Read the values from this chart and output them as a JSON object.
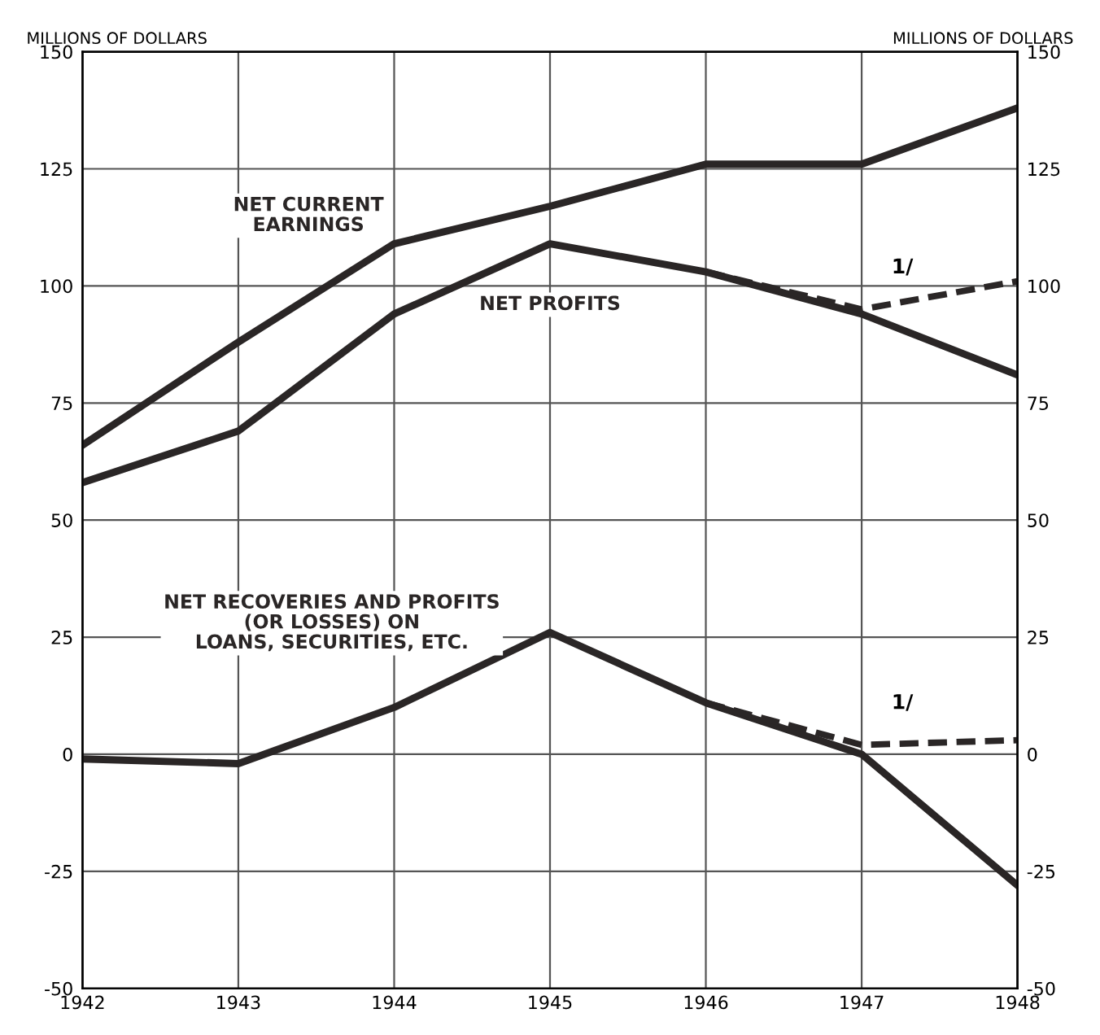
{
  "chart_data": {
    "type": "line",
    "x": [
      1942,
      1943,
      1944,
      1945,
      1946,
      1947,
      1948
    ],
    "series": [
      {
        "name": "NET CURRENT\nEARNINGS",
        "color": "#2a2626",
        "values": [
          66,
          88,
          109,
          117,
          126,
          126,
          138
        ]
      },
      {
        "name": "NET PROFITS",
        "color": "#2a2626",
        "values": [
          58,
          69,
          94,
          109,
          103,
          94,
          81
        ]
      },
      {
        "color": "#2a2626",
        "line_style": "dashed",
        "x": [
          1946,
          1947,
          1948
        ],
        "values": [
          103,
          95,
          101
        ]
      },
      {
        "name": "NET RECOVERIES AND PROFITS\n(OR LOSSES) ON\nLOANS, SECURITIES, ETC.",
        "color": "#2a2626",
        "values": [
          -1,
          -2,
          10,
          26,
          11,
          0,
          -28
        ]
      },
      {
        "color": "#2a2626",
        "line_style": "dashed",
        "x": [
          1946,
          1947,
          1948
        ],
        "values": [
          11,
          2,
          3
        ]
      }
    ],
    "ylabel": "MILLIONS OF DOLLARS",
    "y2label": "MILLIONS OF DOLLARS",
    "xlim": [
      1942,
      1948
    ],
    "xticks": [
      1942,
      1943,
      1944,
      1945,
      1946,
      1947,
      1948
    ],
    "ylim": [
      -50,
      150
    ],
    "yticks": [
      -50,
      -25,
      0,
      25,
      50,
      75,
      100,
      125,
      150
    ],
    "y2lim": [
      -50,
      150
    ],
    "y2ticks": [
      -50,
      -25,
      0,
      25,
      50,
      75,
      100,
      125,
      150
    ],
    "annotations": [
      "1/",
      "1/"
    ],
    "grid": true,
    "line_style": "solid",
    "marker": "none",
    "legend": false
  }
}
